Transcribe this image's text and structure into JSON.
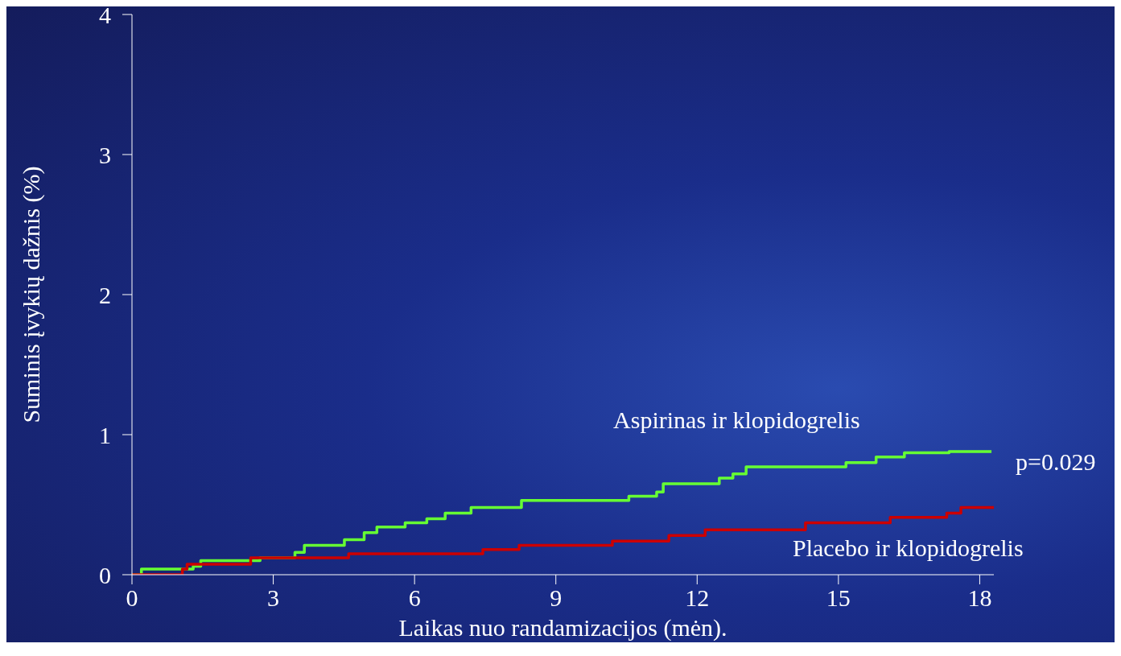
{
  "chart_data": {
    "type": "step",
    "xlabel": "Laikas nuo randamizacijos (mėn).",
    "ylabel": "Suminis įvykių dažnis (%)",
    "xlim": [
      0,
      18.3
    ],
    "xticks": [
      0,
      3,
      6,
      9,
      12,
      15,
      18
    ],
    "ylim": [
      0,
      4
    ],
    "yticks": [
      0,
      1,
      2,
      3,
      4
    ],
    "grid": false,
    "legend": false,
    "marker": "none",
    "line_style": "solid",
    "annotations": [
      {
        "text": "p=0.029",
        "x": 18.25,
        "y": 0.88
      }
    ],
    "series": [
      {
        "name": "Aspirinas ir klopidogrelis",
        "color": "#66ff33",
        "x": [
          0,
          0.2,
          1.3,
          1.46,
          2.72,
          3.46,
          3.66,
          4.51,
          4.93,
          5.2,
          5.8,
          6.26,
          6.65,
          7.2,
          8.27,
          10.55,
          11.14,
          11.28,
          12.47,
          12.76,
          13.04,
          15.16,
          15.8,
          16.4,
          17.35,
          18.25
        ],
        "values": [
          0,
          0.04,
          0.06,
          0.1,
          0.12,
          0.16,
          0.21,
          0.25,
          0.3,
          0.34,
          0.37,
          0.4,
          0.44,
          0.48,
          0.53,
          0.56,
          0.59,
          0.65,
          0.69,
          0.72,
          0.77,
          0.8,
          0.84,
          0.87,
          0.88,
          0.88
        ]
      },
      {
        "name": "Placebo ir klopidogrelis",
        "color": "#cc0000",
        "x": [
          0,
          1.07,
          1.17,
          2.52,
          4.6,
          7.45,
          8.22,
          10.2,
          11.4,
          12.17,
          14.3,
          16.1,
          17.3,
          17.6,
          18.3
        ],
        "values": [
          0,
          0.04,
          0.075,
          0.12,
          0.15,
          0.18,
          0.21,
          0.24,
          0.28,
          0.32,
          0.37,
          0.41,
          0.44,
          0.48,
          0.48
        ]
      }
    ]
  }
}
